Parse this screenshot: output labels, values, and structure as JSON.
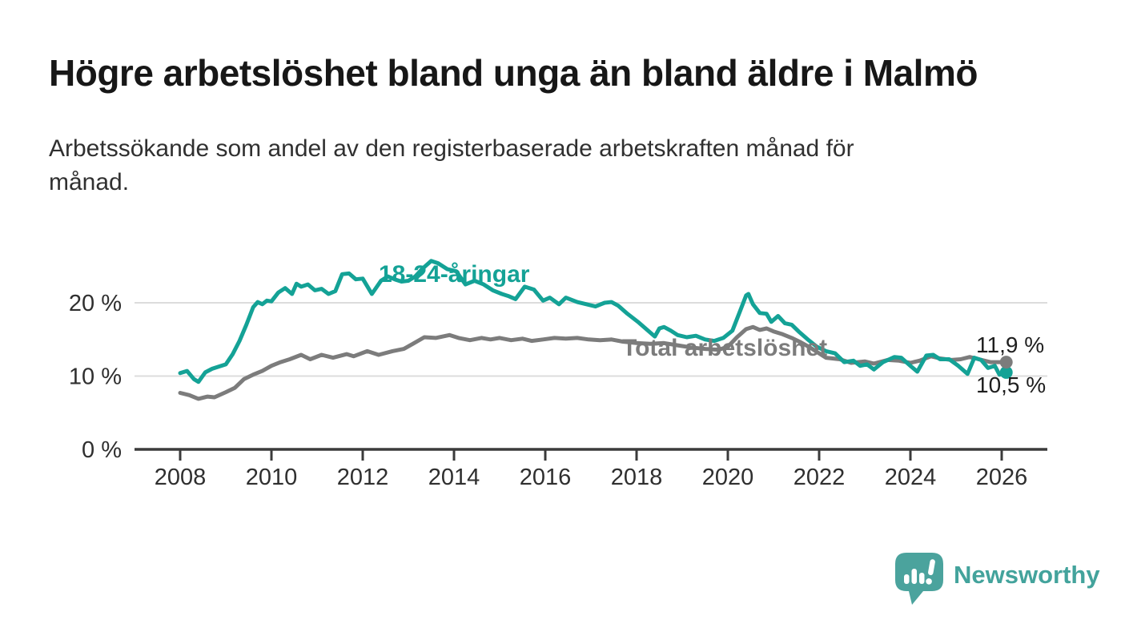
{
  "header": {
    "title": "Högre arbetslöshet bland unga än bland äldre i Malmö",
    "subtitle": "Arbetssökande som andel av den registerbaserade arbetskraften månad för\nmånad."
  },
  "chart_data": {
    "type": "line",
    "title": "Högre arbetslöshet bland unga än bland äldre i Malmö",
    "unit": "%",
    "grid": "horizontal-only",
    "x_axis": {
      "range": [
        2007.0,
        2026.9
      ],
      "ticks": [
        {
          "value": 2008,
          "label": "2008"
        },
        {
          "value": 2010,
          "label": "2010"
        },
        {
          "value": 2012,
          "label": "2012"
        },
        {
          "value": 2014,
          "label": "2014"
        },
        {
          "value": 2016,
          "label": "2016"
        },
        {
          "value": 2018,
          "label": "2018"
        },
        {
          "value": 2020,
          "label": "2020"
        },
        {
          "value": 2022,
          "label": "2022"
        },
        {
          "value": 2024,
          "label": "2024"
        },
        {
          "value": 2026,
          "label": "2026"
        }
      ]
    },
    "y_axis": {
      "range": [
        0,
        27
      ],
      "ticks": [
        {
          "value": 20,
          "label": "20 %"
        },
        {
          "value": 10,
          "label": "10 %"
        },
        {
          "value": 0,
          "label": "0 %"
        }
      ]
    },
    "colors": {
      "youth": "#14a296",
      "total": "#7c7c7c",
      "grid": "#dcdcdc",
      "axis": "#3b3b3b",
      "value_label": "#1e1e1e"
    },
    "series": [
      {
        "id": "youth",
        "label": "18-24-åringar",
        "color": "#14a296",
        "end_value_label": "10,5 %",
        "end_dot": true,
        "points": [
          [
            2008.0,
            10.4
          ],
          [
            2008.15,
            10.7
          ],
          [
            2008.3,
            9.6
          ],
          [
            2008.4,
            9.2
          ],
          [
            2008.55,
            10.5
          ],
          [
            2008.7,
            11.0
          ],
          [
            2008.85,
            11.3
          ],
          [
            2009.0,
            11.6
          ],
          [
            2009.15,
            13.0
          ],
          [
            2009.3,
            14.8
          ],
          [
            2009.45,
            17.0
          ],
          [
            2009.6,
            19.4
          ],
          [
            2009.7,
            20.1
          ],
          [
            2009.8,
            19.8
          ],
          [
            2009.9,
            20.3
          ],
          [
            2010.0,
            20.2
          ],
          [
            2010.15,
            21.4
          ],
          [
            2010.3,
            22.0
          ],
          [
            2010.45,
            21.2
          ],
          [
            2010.55,
            22.6
          ],
          [
            2010.65,
            22.2
          ],
          [
            2010.8,
            22.5
          ],
          [
            2010.95,
            21.7
          ],
          [
            2011.1,
            21.9
          ],
          [
            2011.25,
            21.2
          ],
          [
            2011.4,
            21.6
          ],
          [
            2011.55,
            23.9
          ],
          [
            2011.7,
            24.0
          ],
          [
            2011.85,
            23.2
          ],
          [
            2012.0,
            23.3
          ],
          [
            2012.2,
            21.2
          ],
          [
            2012.4,
            23.0
          ],
          [
            2012.55,
            23.6
          ],
          [
            2012.7,
            23.2
          ],
          [
            2012.85,
            22.9
          ],
          [
            2013.0,
            23.0
          ],
          [
            2013.15,
            23.6
          ],
          [
            2013.3,
            24.6
          ],
          [
            2013.5,
            25.7
          ],
          [
            2013.65,
            25.4
          ],
          [
            2013.85,
            24.6
          ],
          [
            2014.05,
            24.3
          ],
          [
            2014.25,
            22.5
          ],
          [
            2014.45,
            23.0
          ],
          [
            2014.65,
            22.5
          ],
          [
            2014.85,
            21.7
          ],
          [
            2015.05,
            21.2
          ],
          [
            2015.2,
            20.9
          ],
          [
            2015.35,
            20.5
          ],
          [
            2015.55,
            22.2
          ],
          [
            2015.75,
            21.8
          ],
          [
            2015.95,
            20.3
          ],
          [
            2016.1,
            20.7
          ],
          [
            2016.3,
            19.8
          ],
          [
            2016.45,
            20.7
          ],
          [
            2016.7,
            20.1
          ],
          [
            2016.9,
            19.8
          ],
          [
            2017.1,
            19.5
          ],
          [
            2017.3,
            20.0
          ],
          [
            2017.45,
            20.1
          ],
          [
            2017.6,
            19.6
          ],
          [
            2017.8,
            18.5
          ],
          [
            2018.05,
            17.3
          ],
          [
            2018.25,
            16.2
          ],
          [
            2018.4,
            15.4
          ],
          [
            2018.5,
            16.5
          ],
          [
            2018.6,
            16.7
          ],
          [
            2018.75,
            16.2
          ],
          [
            2018.9,
            15.6
          ],
          [
            2019.1,
            15.3
          ],
          [
            2019.3,
            15.5
          ],
          [
            2019.5,
            15.0
          ],
          [
            2019.7,
            14.8
          ],
          [
            2019.9,
            15.2
          ],
          [
            2020.1,
            16.2
          ],
          [
            2020.25,
            18.6
          ],
          [
            2020.4,
            21.0
          ],
          [
            2020.45,
            21.2
          ],
          [
            2020.55,
            19.8
          ],
          [
            2020.7,
            18.6
          ],
          [
            2020.85,
            18.5
          ],
          [
            2020.95,
            17.4
          ],
          [
            2021.1,
            18.2
          ],
          [
            2021.25,
            17.2
          ],
          [
            2021.4,
            17.0
          ],
          [
            2021.55,
            16.1
          ],
          [
            2021.75,
            15.0
          ],
          [
            2021.95,
            14.0
          ],
          [
            2022.15,
            13.4
          ],
          [
            2022.35,
            13.1
          ],
          [
            2022.55,
            11.9
          ],
          [
            2022.75,
            12.1
          ],
          [
            2022.9,
            11.4
          ],
          [
            2023.05,
            11.6
          ],
          [
            2023.2,
            10.9
          ],
          [
            2023.4,
            11.9
          ],
          [
            2023.65,
            12.6
          ],
          [
            2023.8,
            12.5
          ],
          [
            2024.0,
            11.4
          ],
          [
            2024.15,
            10.6
          ],
          [
            2024.35,
            12.8
          ],
          [
            2024.5,
            12.9
          ],
          [
            2024.65,
            12.3
          ],
          [
            2024.85,
            12.3
          ],
          [
            2025.05,
            11.4
          ],
          [
            2025.25,
            10.3
          ],
          [
            2025.4,
            12.5
          ],
          [
            2025.55,
            12.2
          ],
          [
            2025.7,
            11.1
          ],
          [
            2025.85,
            11.4
          ],
          [
            2025.95,
            10.2
          ],
          [
            2026.1,
            10.5
          ]
        ]
      },
      {
        "id": "total",
        "label": "Total arbetslöshet",
        "color": "#7c7c7c",
        "end_value_label": "11,9 %",
        "end_dot": true,
        "points": [
          [
            2008.0,
            7.7
          ],
          [
            2008.2,
            7.4
          ],
          [
            2008.4,
            6.9
          ],
          [
            2008.6,
            7.2
          ],
          [
            2008.75,
            7.1
          ],
          [
            2009.0,
            7.8
          ],
          [
            2009.2,
            8.4
          ],
          [
            2009.4,
            9.6
          ],
          [
            2009.6,
            10.2
          ],
          [
            2009.8,
            10.7
          ],
          [
            2010.0,
            11.4
          ],
          [
            2010.2,
            11.9
          ],
          [
            2010.4,
            12.3
          ],
          [
            2010.65,
            12.9
          ],
          [
            2010.85,
            12.3
          ],
          [
            2011.1,
            12.9
          ],
          [
            2011.35,
            12.5
          ],
          [
            2011.65,
            13.0
          ],
          [
            2011.8,
            12.7
          ],
          [
            2012.1,
            13.4
          ],
          [
            2012.35,
            12.9
          ],
          [
            2012.65,
            13.4
          ],
          [
            2012.9,
            13.7
          ],
          [
            2013.1,
            14.4
          ],
          [
            2013.35,
            15.3
          ],
          [
            2013.6,
            15.2
          ],
          [
            2013.9,
            15.6
          ],
          [
            2014.1,
            15.2
          ],
          [
            2014.35,
            14.9
          ],
          [
            2014.6,
            15.2
          ],
          [
            2014.8,
            15.0
          ],
          [
            2015.0,
            15.2
          ],
          [
            2015.25,
            14.9
          ],
          [
            2015.5,
            15.1
          ],
          [
            2015.7,
            14.8
          ],
          [
            2015.95,
            15.0
          ],
          [
            2016.2,
            15.2
          ],
          [
            2016.45,
            15.1
          ],
          [
            2016.7,
            15.2
          ],
          [
            2016.95,
            15.0
          ],
          [
            2017.2,
            14.9
          ],
          [
            2017.45,
            15.0
          ],
          [
            2017.7,
            14.7
          ],
          [
            2018.0,
            14.5
          ],
          [
            2018.3,
            14.4
          ],
          [
            2018.6,
            14.5
          ],
          [
            2018.9,
            14.2
          ],
          [
            2019.2,
            13.9
          ],
          [
            2019.5,
            13.7
          ],
          [
            2019.8,
            13.6
          ],
          [
            2020.0,
            14.0
          ],
          [
            2020.2,
            15.3
          ],
          [
            2020.4,
            16.4
          ],
          [
            2020.55,
            16.7
          ],
          [
            2020.7,
            16.3
          ],
          [
            2020.85,
            16.5
          ],
          [
            2021.0,
            16.1
          ],
          [
            2021.2,
            15.7
          ],
          [
            2021.4,
            15.2
          ],
          [
            2021.6,
            14.6
          ],
          [
            2021.8,
            13.9
          ],
          [
            2022.0,
            13.1
          ],
          [
            2022.15,
            12.5
          ],
          [
            2022.45,
            12.3
          ],
          [
            2022.7,
            11.8
          ],
          [
            2023.0,
            12.0
          ],
          [
            2023.2,
            11.7
          ],
          [
            2023.5,
            12.2
          ],
          [
            2023.75,
            12.1
          ],
          [
            2024.0,
            11.8
          ],
          [
            2024.2,
            12.1
          ],
          [
            2024.45,
            12.7
          ],
          [
            2024.65,
            12.4
          ],
          [
            2024.9,
            12.2
          ],
          [
            2025.1,
            12.3
          ],
          [
            2025.3,
            12.6
          ],
          [
            2025.5,
            12.3
          ],
          [
            2025.75,
            11.9
          ],
          [
            2026.1,
            11.9
          ]
        ]
      }
    ]
  },
  "footer": {
    "brand": "Newsworthy"
  }
}
